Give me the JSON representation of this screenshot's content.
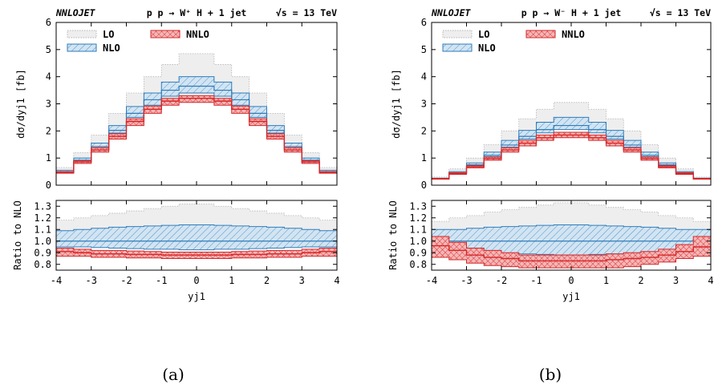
{
  "chart_data": [
    {
      "type": "step",
      "panel_label": "(a)",
      "brand": "NNLOJET",
      "process": "p p → W⁺ H + 1 jet",
      "energy": "√s = 13 TeV",
      "xlabel": "yj1",
      "ylabel": "dσ/dyj1 [fb]",
      "ratio_ylabel": "Ratio to NLO",
      "xlim": [
        -4,
        4
      ],
      "ylim": [
        0,
        6
      ],
      "ratio_ylim": [
        0.75,
        1.35
      ],
      "x_ticks": [
        "-4",
        "-3",
        "-2",
        "-1",
        "0",
        "1",
        "2",
        "3",
        "4"
      ],
      "y_ticks": [
        "0",
        "1",
        "2",
        "3",
        "4",
        "5",
        "6"
      ],
      "ratio_ticks": [
        "0.8",
        "0.9",
        "1.0",
        "1.1",
        "1.2",
        "1.3"
      ],
      "legend": [
        "LO",
        "NLO",
        "NNLO"
      ],
      "legend_position": "top-left",
      "bin_edges": [
        -4.0,
        -3.5,
        -3.0,
        -2.5,
        -2.0,
        -1.5,
        -1.0,
        -0.5,
        0.0,
        0.5,
        1.0,
        1.5,
        2.0,
        2.5,
        3.0,
        3.5,
        4.0
      ],
      "series": [
        {
          "name": "LO",
          "central": [
            0.55,
            1.0,
            1.55,
            2.2,
            2.85,
            3.35,
            3.7,
            3.9,
            3.9,
            3.7,
            3.35,
            2.85,
            2.2,
            1.55,
            1.0,
            0.55
          ],
          "low": [
            0.45,
            0.85,
            1.3,
            1.85,
            2.4,
            2.8,
            3.1,
            3.25,
            3.25,
            3.1,
            2.8,
            2.4,
            1.85,
            1.3,
            0.85,
            0.45
          ],
          "high": [
            0.65,
            1.2,
            1.85,
            2.65,
            3.4,
            4.0,
            4.45,
            4.85,
            4.85,
            4.45,
            4.0,
            3.4,
            2.65,
            1.85,
            1.2,
            0.65
          ]
        },
        {
          "name": "NLO",
          "central": [
            0.5,
            0.92,
            1.42,
            2.02,
            2.65,
            3.15,
            3.5,
            3.65,
            3.65,
            3.5,
            3.15,
            2.65,
            2.02,
            1.42,
            0.92,
            0.5
          ],
          "low": [
            0.48,
            0.88,
            1.35,
            1.92,
            2.5,
            2.95,
            3.28,
            3.4,
            3.4,
            3.28,
            2.95,
            2.5,
            1.92,
            1.35,
            0.88,
            0.48
          ],
          "high": [
            0.55,
            1.0,
            1.55,
            2.2,
            2.9,
            3.4,
            3.8,
            4.0,
            4.0,
            3.8,
            3.4,
            2.9,
            2.2,
            1.55,
            1.0,
            0.55
          ]
        },
        {
          "name": "NNLO",
          "central": [
            0.47,
            0.86,
            1.3,
            1.8,
            2.35,
            2.8,
            3.1,
            3.2,
            3.2,
            3.1,
            2.8,
            2.35,
            1.8,
            1.3,
            0.86,
            0.47
          ],
          "low": [
            0.44,
            0.8,
            1.22,
            1.7,
            2.2,
            2.65,
            2.95,
            3.05,
            3.05,
            2.95,
            2.65,
            2.2,
            1.7,
            1.22,
            0.8,
            0.44
          ],
          "high": [
            0.5,
            0.9,
            1.38,
            1.9,
            2.45,
            2.92,
            3.2,
            3.3,
            3.3,
            3.2,
            2.92,
            2.45,
            1.9,
            1.38,
            0.9,
            0.5
          ]
        }
      ],
      "ratio_series": [
        {
          "name": "LO",
          "low": [
            0.98,
            0.98,
            0.98,
            0.97,
            0.96,
            0.96,
            0.95,
            0.95,
            0.95,
            0.95,
            0.96,
            0.96,
            0.97,
            0.98,
            0.98,
            0.98
          ],
          "high": [
            1.18,
            1.2,
            1.22,
            1.24,
            1.26,
            1.28,
            1.3,
            1.32,
            1.32,
            1.3,
            1.28,
            1.26,
            1.24,
            1.22,
            1.2,
            1.18
          ]
        },
        {
          "name": "NLO",
          "central": [
            1.0,
            1.0,
            1.0,
            1.0,
            1.0,
            1.0,
            1.0,
            1.0,
            1.0,
            1.0,
            1.0,
            1.0,
            1.0,
            1.0,
            1.0,
            1.0
          ],
          "low": [
            0.95,
            0.95,
            0.945,
            0.94,
            0.935,
            0.93,
            0.93,
            0.925,
            0.925,
            0.93,
            0.93,
            0.935,
            0.94,
            0.945,
            0.95,
            0.95
          ],
          "high": [
            1.09,
            1.1,
            1.11,
            1.12,
            1.125,
            1.13,
            1.135,
            1.14,
            1.14,
            1.135,
            1.13,
            1.125,
            1.12,
            1.11,
            1.1,
            1.09
          ]
        },
        {
          "name": "NNLO",
          "central": [
            0.91,
            0.9,
            0.89,
            0.89,
            0.885,
            0.885,
            0.88,
            0.88,
            0.88,
            0.88,
            0.885,
            0.885,
            0.89,
            0.89,
            0.9,
            0.91
          ],
          "low": [
            0.87,
            0.87,
            0.86,
            0.86,
            0.855,
            0.855,
            0.85,
            0.85,
            0.85,
            0.85,
            0.855,
            0.855,
            0.86,
            0.86,
            0.87,
            0.87
          ],
          "high": [
            0.94,
            0.93,
            0.92,
            0.92,
            0.915,
            0.91,
            0.905,
            0.905,
            0.905,
            0.905,
            0.91,
            0.915,
            0.92,
            0.92,
            0.93,
            0.94
          ]
        }
      ]
    },
    {
      "type": "step",
      "panel_label": "(b)",
      "brand": "NNLOJET",
      "process": "p p → W⁻ H + 1 jet",
      "energy": "√s = 13 TeV",
      "xlabel": "yj1",
      "ylabel": "dσ/dyj1 [fb]",
      "ratio_ylabel": "Ratio to NLO",
      "xlim": [
        -4,
        4
      ],
      "ylim": [
        0,
        6
      ],
      "ratio_ylim": [
        0.75,
        1.35
      ],
      "x_ticks": [
        "-4",
        "-3",
        "-2",
        "-1",
        "0",
        "1",
        "2",
        "3",
        "4"
      ],
      "y_ticks": [
        "0",
        "1",
        "2",
        "3",
        "4",
        "5",
        "6"
      ],
      "ratio_ticks": [
        "0.8",
        "0.9",
        "1.0",
        "1.1",
        "1.2",
        "1.3"
      ],
      "legend": [
        "LO",
        "NLO",
        "NNLO"
      ],
      "legend_position": "top-left",
      "bin_edges": [
        -4.0,
        -3.5,
        -3.0,
        -2.5,
        -2.0,
        -1.5,
        -1.0,
        -0.5,
        0.0,
        0.5,
        1.0,
        1.5,
        2.0,
        2.5,
        3.0,
        3.5,
        4.0
      ],
      "series": [
        {
          "name": "LO",
          "central": [
            0.25,
            0.5,
            0.85,
            1.25,
            1.7,
            2.1,
            2.4,
            2.6,
            2.6,
            2.4,
            2.1,
            1.7,
            1.25,
            0.85,
            0.5,
            0.25
          ],
          "low": [
            0.22,
            0.45,
            0.75,
            1.1,
            1.5,
            1.85,
            2.1,
            2.25,
            2.25,
            2.1,
            1.85,
            1.5,
            1.1,
            0.75,
            0.45,
            0.22
          ],
          "high": [
            0.3,
            0.6,
            1.0,
            1.5,
            2.0,
            2.45,
            2.8,
            3.05,
            3.05,
            2.8,
            2.45,
            2.0,
            1.5,
            1.0,
            0.6,
            0.3
          ]
        },
        {
          "name": "NLO",
          "central": [
            0.24,
            0.46,
            0.75,
            1.1,
            1.48,
            1.8,
            2.05,
            2.2,
            2.2,
            2.05,
            1.8,
            1.48,
            1.1,
            0.75,
            0.46,
            0.24
          ],
          "low": [
            0.23,
            0.44,
            0.72,
            1.05,
            1.4,
            1.7,
            1.93,
            2.05,
            2.05,
            1.93,
            1.7,
            1.4,
            1.05,
            0.72,
            0.44,
            0.23
          ],
          "high": [
            0.26,
            0.5,
            0.82,
            1.22,
            1.65,
            2.02,
            2.32,
            2.5,
            2.5,
            2.32,
            2.02,
            1.65,
            1.22,
            0.82,
            0.5,
            0.26
          ]
        },
        {
          "name": "NNLO",
          "central": [
            0.23,
            0.43,
            0.68,
            0.98,
            1.3,
            1.55,
            1.75,
            1.85,
            1.85,
            1.75,
            1.55,
            1.3,
            0.98,
            0.68,
            0.43,
            0.23
          ],
          "low": [
            0.22,
            0.4,
            0.64,
            0.92,
            1.22,
            1.45,
            1.65,
            1.75,
            1.75,
            1.65,
            1.45,
            1.22,
            0.92,
            0.64,
            0.4,
            0.22
          ],
          "high": [
            0.25,
            0.46,
            0.72,
            1.04,
            1.38,
            1.65,
            1.85,
            1.95,
            1.95,
            1.85,
            1.65,
            1.38,
            1.04,
            0.72,
            0.46,
            0.25
          ]
        }
      ],
      "ratio_series": [
        {
          "name": "LO",
          "low": [
            0.97,
            0.97,
            0.97,
            0.96,
            0.96,
            0.95,
            0.95,
            0.95,
            0.95,
            0.95,
            0.95,
            0.96,
            0.96,
            0.97,
            0.97,
            0.97
          ],
          "high": [
            1.17,
            1.2,
            1.22,
            1.25,
            1.27,
            1.29,
            1.31,
            1.33,
            1.33,
            1.31,
            1.29,
            1.27,
            1.25,
            1.22,
            1.2,
            1.17
          ]
        },
        {
          "name": "NLO",
          "central": [
            1.0,
            1.0,
            1.0,
            1.0,
            1.0,
            1.0,
            1.0,
            1.0,
            1.0,
            1.0,
            1.0,
            1.0,
            1.0,
            1.0,
            1.0,
            1.0
          ],
          "low": [
            0.92,
            0.92,
            0.91,
            0.9,
            0.895,
            0.89,
            0.885,
            0.88,
            0.88,
            0.885,
            0.89,
            0.895,
            0.9,
            0.91,
            0.92,
            0.92
          ],
          "high": [
            1.1,
            1.1,
            1.11,
            1.12,
            1.125,
            1.13,
            1.135,
            1.14,
            1.14,
            1.135,
            1.13,
            1.125,
            1.12,
            1.11,
            1.1,
            1.1
          ]
        },
        {
          "name": "NNLO",
          "central": [
            0.96,
            0.92,
            0.88,
            0.86,
            0.85,
            0.83,
            0.83,
            0.83,
            0.83,
            0.83,
            0.84,
            0.85,
            0.86,
            0.88,
            0.91,
            0.95
          ],
          "low": [
            0.86,
            0.84,
            0.81,
            0.79,
            0.78,
            0.77,
            0.77,
            0.77,
            0.77,
            0.77,
            0.77,
            0.78,
            0.8,
            0.82,
            0.85,
            0.87
          ],
          "high": [
            1.04,
            0.99,
            0.94,
            0.92,
            0.9,
            0.88,
            0.88,
            0.88,
            0.88,
            0.88,
            0.89,
            0.9,
            0.91,
            0.93,
            0.97,
            1.04
          ]
        }
      ]
    }
  ],
  "colors": {
    "lo_fill": "#eeeeee",
    "lo_line": "#b4b4b4",
    "nlo_fill": "#d2e4f2",
    "nlo_line": "#2e7dbb",
    "nnlo_fill": "#f5b7b7",
    "nnlo_line": "#d62728"
  }
}
